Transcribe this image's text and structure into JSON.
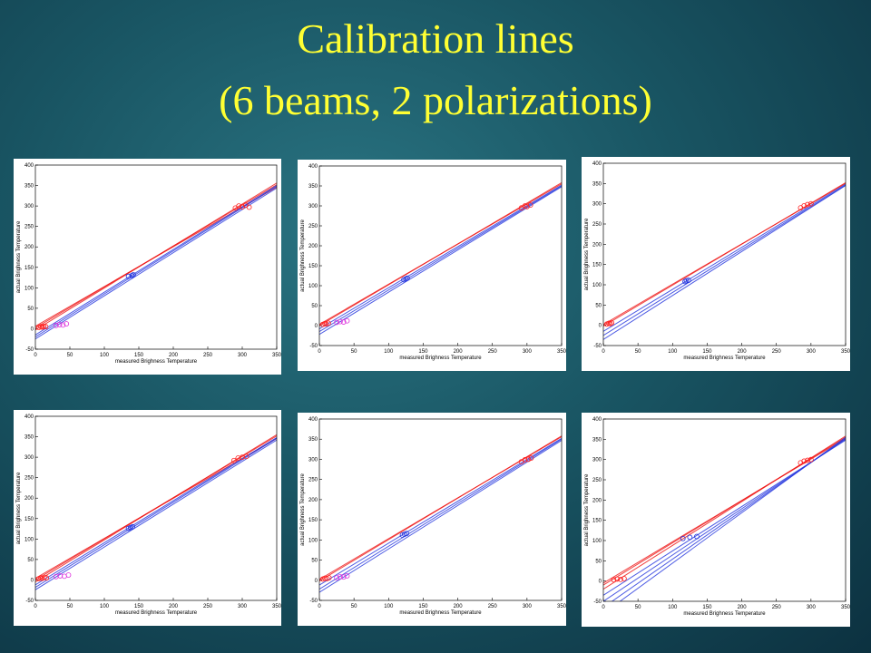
{
  "slide": {
    "title": [
      "Calibration lines",
      "(6 beams, 2 polarizations)"
    ]
  },
  "chart_data": [
    {
      "type": "line",
      "xlabel": "measured Brighness Temperature",
      "ylabel": "actual Brighness Temperature",
      "xlim": [
        0,
        350
      ],
      "ylim": [
        -50,
        400
      ],
      "xticks": [
        0,
        50,
        100,
        150,
        200,
        250,
        300,
        350
      ],
      "yticks": [
        -50,
        0,
        50,
        100,
        150,
        200,
        250,
        300,
        350,
        400
      ],
      "series": [
        {
          "color": "#ee1111",
          "x": [
            0,
            350
          ],
          "values": [
            2,
            352
          ]
        },
        {
          "color": "#ee1111",
          "x": [
            0,
            350
          ],
          "values": [
            6,
            346
          ]
        },
        {
          "color": "#ee1111",
          "x": [
            0,
            350
          ],
          "values": [
            -3,
            356
          ]
        },
        {
          "color": "#2233dd",
          "x": [
            0,
            350
          ],
          "values": [
            -20,
            348
          ]
        },
        {
          "color": "#2233dd",
          "x": [
            0,
            350
          ],
          "values": [
            -15,
            350
          ]
        },
        {
          "color": "#2233dd",
          "x": [
            0,
            350
          ],
          "values": [
            -25,
            344
          ]
        },
        {
          "color": "#ff2222",
          "marker": "o",
          "x": [
            5,
            8,
            10,
            12,
            15
          ],
          "values": [
            3,
            5,
            4,
            6,
            5
          ]
        },
        {
          "color": "#ff2222",
          "marker": "o",
          "x": [
            290,
            295,
            300,
            305,
            310
          ],
          "values": [
            295,
            300,
            298,
            302,
            297
          ]
        },
        {
          "color": "#2233dd",
          "marker": "o",
          "x": [
            135,
            140,
            142
          ],
          "values": [
            128,
            130,
            132
          ]
        },
        {
          "color": "#dd33dd",
          "marker": "o",
          "x": [
            30,
            35,
            40,
            45
          ],
          "values": [
            8,
            10,
            9,
            12
          ]
        }
      ]
    },
    {
      "type": "line",
      "xlabel": "measured Brighness Temperature",
      "ylabel": "actual Brighness Temperature",
      "xlim": [
        0,
        350
      ],
      "ylim": [
        -50,
        400
      ],
      "xticks": [
        0,
        50,
        100,
        150,
        200,
        250,
        300,
        350
      ],
      "yticks": [
        -50,
        0,
        50,
        100,
        150,
        200,
        250,
        300,
        350,
        400
      ],
      "series": [
        {
          "color": "#ee1111",
          "x": [
            0,
            350
          ],
          "values": [
            3,
            355
          ]
        },
        {
          "color": "#ee1111",
          "x": [
            0,
            350
          ],
          "values": [
            0,
            358
          ]
        },
        {
          "color": "#2233dd",
          "x": [
            0,
            350
          ],
          "values": [
            -8,
            352
          ]
        },
        {
          "color": "#2233dd",
          "x": [
            0,
            350
          ],
          "values": [
            -15,
            350
          ]
        },
        {
          "color": "#2233dd",
          "x": [
            0,
            350
          ],
          "values": [
            -22,
            348
          ]
        },
        {
          "color": "#ff2222",
          "marker": "o",
          "x": [
            5,
            8,
            10,
            13
          ],
          "values": [
            3,
            5,
            4,
            6
          ]
        },
        {
          "color": "#ff2222",
          "marker": "o",
          "x": [
            292,
            297,
            300,
            305
          ],
          "values": [
            295,
            300,
            298,
            302
          ]
        },
        {
          "color": "#2233dd",
          "marker": "o",
          "x": [
            122,
            125,
            127
          ],
          "values": [
            115,
            117,
            119
          ]
        },
        {
          "color": "#dd33dd",
          "marker": "o",
          "x": [
            25,
            30,
            35,
            40
          ],
          "values": [
            8,
            10,
            9,
            12
          ]
        }
      ]
    },
    {
      "type": "line",
      "xlabel": "measured Brighness Temperature",
      "ylabel": "actual Brighness Temperature",
      "xlim": [
        0,
        350
      ],
      "ylim": [
        -50,
        400
      ],
      "xticks": [
        0,
        50,
        100,
        150,
        200,
        250,
        300,
        350
      ],
      "yticks": [
        -50,
        0,
        50,
        100,
        150,
        200,
        250,
        300,
        350,
        400
      ],
      "series": [
        {
          "color": "#ee1111",
          "x": [
            0,
            350
          ],
          "values": [
            2,
            350
          ]
        },
        {
          "color": "#ee1111",
          "x": [
            0,
            350
          ],
          "values": [
            -2,
            352
          ]
        },
        {
          "color": "#2233dd",
          "x": [
            0,
            350
          ],
          "values": [
            -15,
            348
          ]
        },
        {
          "color": "#2233dd",
          "x": [
            0,
            350
          ],
          "values": [
            -25,
            346
          ]
        },
        {
          "color": "#2233dd",
          "x": [
            0,
            350
          ],
          "values": [
            -35,
            345
          ]
        },
        {
          "color": "#ff2222",
          "marker": "o",
          "x": [
            5,
            8,
            10,
            12
          ],
          "values": [
            3,
            5,
            4,
            6
          ]
        },
        {
          "color": "#ff2222",
          "marker": "o",
          "x": [
            285,
            290,
            295,
            300
          ],
          "values": [
            290,
            295,
            298,
            300
          ]
        },
        {
          "color": "#2233dd",
          "marker": "o",
          "x": [
            118,
            120,
            123
          ],
          "values": [
            108,
            110,
            111
          ]
        }
      ]
    },
    {
      "type": "line",
      "xlabel": "measured Brighness Temperature",
      "ylabel": "actual Brighness Temperature",
      "xlim": [
        0,
        350
      ],
      "ylim": [
        -50,
        400
      ],
      "xticks": [
        0,
        50,
        100,
        150,
        200,
        250,
        300,
        350
      ],
      "yticks": [
        -50,
        0,
        50,
        100,
        150,
        200,
        250,
        300,
        350,
        400
      ],
      "series": [
        {
          "color": "#ee1111",
          "x": [
            0,
            350
          ],
          "values": [
            0,
            352
          ]
        },
        {
          "color": "#ee1111",
          "x": [
            0,
            350
          ],
          "values": [
            4,
            346
          ]
        },
        {
          "color": "#ee1111",
          "x": [
            0,
            350
          ],
          "values": [
            -5,
            355
          ]
        },
        {
          "color": "#2233dd",
          "x": [
            0,
            350
          ],
          "values": [
            -18,
            346
          ]
        },
        {
          "color": "#2233dd",
          "x": [
            0,
            350
          ],
          "values": [
            -12,
            348
          ]
        },
        {
          "color": "#2233dd",
          "x": [
            0,
            350
          ],
          "values": [
            -24,
            342
          ]
        },
        {
          "color": "#ff2222",
          "marker": "o",
          "x": [
            5,
            8,
            10,
            13,
            16
          ],
          "values": [
            3,
            5,
            4,
            6,
            5
          ]
        },
        {
          "color": "#ff2222",
          "marker": "o",
          "x": [
            288,
            294,
            300,
            306
          ],
          "values": [
            292,
            298,
            300,
            302
          ]
        },
        {
          "color": "#2233dd",
          "marker": "o",
          "x": [
            135,
            138,
            141
          ],
          "values": [
            126,
            128,
            130
          ]
        },
        {
          "color": "#dd33dd",
          "marker": "o",
          "x": [
            30,
            36,
            42,
            48
          ],
          "values": [
            8,
            10,
            9,
            12
          ]
        }
      ]
    },
    {
      "type": "line",
      "xlabel": "measured Brighness Temperature",
      "ylabel": "actual Brighness Temperature",
      "xlim": [
        0,
        350
      ],
      "ylim": [
        -50,
        400
      ],
      "xticks": [
        0,
        50,
        100,
        150,
        200,
        250,
        300,
        350
      ],
      "yticks": [
        -50,
        0,
        50,
        100,
        150,
        200,
        250,
        300,
        350,
        400
      ],
      "series": [
        {
          "color": "#ee1111",
          "x": [
            0,
            350
          ],
          "values": [
            2,
            356
          ]
        },
        {
          "color": "#ee1111",
          "x": [
            0,
            350
          ],
          "values": [
            -2,
            358
          ]
        },
        {
          "color": "#2233dd",
          "x": [
            0,
            350
          ],
          "values": [
            -12,
            352
          ]
        },
        {
          "color": "#2233dd",
          "x": [
            0,
            350
          ],
          "values": [
            -22,
            350
          ]
        },
        {
          "color": "#2233dd",
          "x": [
            0,
            350
          ],
          "values": [
            -30,
            347
          ]
        },
        {
          "color": "#ff2222",
          "marker": "o",
          "x": [
            5,
            8,
            11,
            14
          ],
          "values": [
            3,
            5,
            4,
            6
          ]
        },
        {
          "color": "#ff2222",
          "marker": "o",
          "x": [
            292,
            297,
            302,
            306
          ],
          "values": [
            294,
            299,
            300,
            303
          ]
        },
        {
          "color": "#2233dd",
          "marker": "o",
          "x": [
            120,
            123,
            126
          ],
          "values": [
            112,
            114,
            116
          ]
        },
        {
          "color": "#dd33dd",
          "marker": "o",
          "x": [
            25,
            30,
            35,
            40
          ],
          "values": [
            6,
            9,
            8,
            11
          ]
        }
      ]
    },
    {
      "type": "line",
      "xlabel": "measured Brighness Temperature",
      "ylabel": "actual Brighness Temperature",
      "xlim": [
        0,
        350
      ],
      "ylim": [
        -50,
        400
      ],
      "xticks": [
        0,
        50,
        100,
        150,
        200,
        250,
        300,
        350
      ],
      "yticks": [
        -50,
        0,
        50,
        100,
        150,
        200,
        250,
        300,
        350,
        400
      ],
      "series": [
        {
          "color": "#ee1111",
          "x": [
            0,
            350
          ],
          "values": [
            -10,
            355
          ]
        },
        {
          "color": "#ee1111",
          "x": [
            0,
            350
          ],
          "values": [
            -20,
            358
          ]
        },
        {
          "color": "#ee1111",
          "x": [
            0,
            350
          ],
          "values": [
            -5,
            352
          ]
        },
        {
          "color": "#2233dd",
          "x": [
            0,
            350
          ],
          "values": [
            -35,
            348
          ]
        },
        {
          "color": "#2233dd",
          "x": [
            0,
            350
          ],
          "values": [
            -50,
            350
          ]
        },
        {
          "color": "#2233dd",
          "x": [
            0,
            350
          ],
          "values": [
            -65,
            352
          ]
        },
        {
          "color": "#2233dd",
          "x": [
            0,
            350
          ],
          "values": [
            -80,
            355
          ]
        },
        {
          "color": "#ff2222",
          "marker": "o",
          "x": [
            15,
            20,
            25,
            30
          ],
          "values": [
            3,
            5,
            4,
            6
          ]
        },
        {
          "color": "#ff2222",
          "marker": "o",
          "x": [
            285,
            290,
            295,
            300
          ],
          "values": [
            292,
            296,
            298,
            300
          ]
        },
        {
          "color": "#2233dd",
          "marker": "o",
          "x": [
            115,
            125,
            135
          ],
          "values": [
            105,
            108,
            110
          ]
        }
      ]
    }
  ]
}
